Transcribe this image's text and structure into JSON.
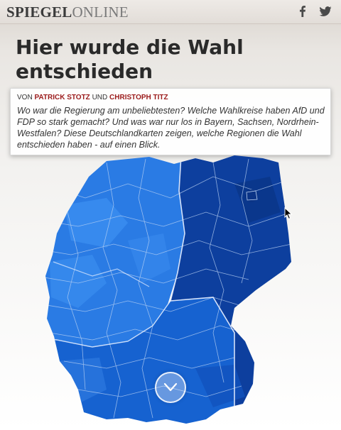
{
  "header": {
    "logo_brand": "SPIEGEL",
    "logo_suffix": "ONLINE",
    "social": [
      {
        "name": "facebook-icon",
        "glyph": "f"
      },
      {
        "name": "twitter-icon",
        "glyph": "bird"
      }
    ]
  },
  "article": {
    "title": "Hier wurde die Wahl entschieden",
    "byline": {
      "prefix": "VON",
      "author1": "PATRICK STOTZ",
      "conjunction": "UND",
      "author2": "CHRISTOPH TITZ"
    },
    "teaser": "Wo war die Regierung am unbeliebtesten? Welche Wahlkreise haben AfD und FDP so stark gemacht? Und was war nur los in Bayern, Sachsen, Nordrhein-Westfalen? Diese Deutschlandkarten zeigen, welche Regionen die Wahl entschieden haben - auf einen Blick."
  },
  "map": {
    "colors": {
      "west": "#2a7be4",
      "west_light": "#3b8ff0",
      "east": "#0d3f9e",
      "south": "#1662d0",
      "borders": "#bcd3f3",
      "accent_author": "#9b1b1b"
    }
  },
  "scroll_button": {
    "icon": "chevron-down-icon"
  }
}
